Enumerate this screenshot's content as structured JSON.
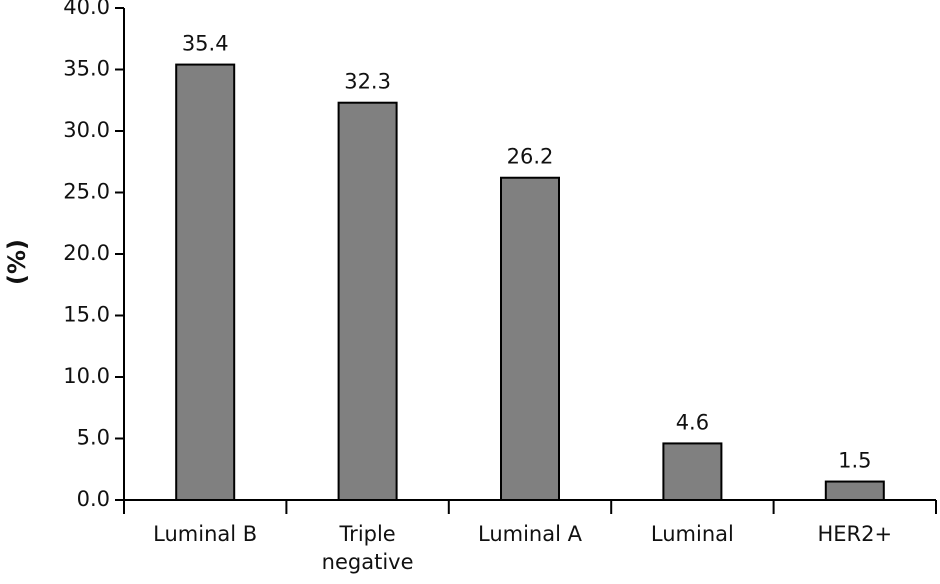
{
  "chart_data": {
    "type": "bar",
    "y_label": "(%)",
    "categories": [
      "Luminal B",
      "Triple negative",
      "Luminal A",
      "Luminal",
      "HER2+"
    ],
    "values": [
      35.4,
      32.3,
      26.2,
      4.6,
      1.5
    ],
    "color": "#808080",
    "ylim": [
      0,
      40
    ],
    "yticks": [
      {
        "value": 0,
        "label": "0.0"
      },
      {
        "value": 5,
        "label": "5.0"
      },
      {
        "value": 10,
        "label": "10.0"
      },
      {
        "value": 15,
        "label": "15.0"
      },
      {
        "value": 20,
        "label": "20.0"
      },
      {
        "value": 25,
        "label": "25.0"
      },
      {
        "value": 30,
        "label": "30.0"
      },
      {
        "value": 35,
        "label": "35.0"
      },
      {
        "value": 40,
        "label": "40.0"
      }
    ],
    "grid": false
  }
}
